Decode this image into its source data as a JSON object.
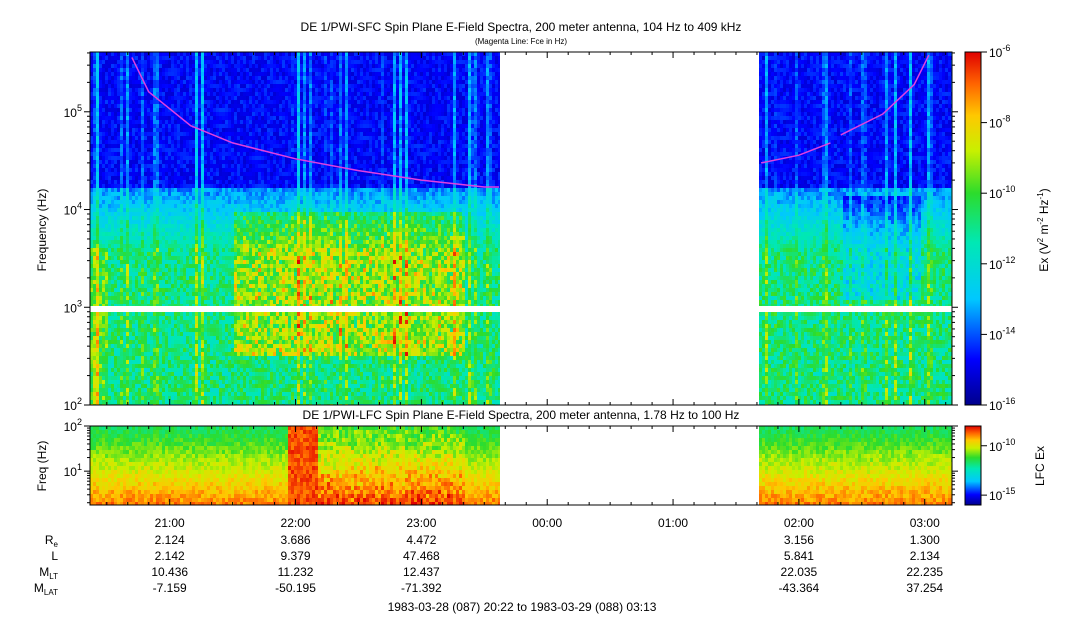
{
  "chart_data": [
    {
      "type": "heatmap",
      "title": "DE 1/PWI-SFC  Spin Plane E-Field Spectra, 200 meter antenna, 104 Hz to 409 kHz",
      "subtitle": "(Magenta Line: Fce in Hz)",
      "ylabel": "Frequency (Hz)",
      "y_scale": "log",
      "ylim": [
        100,
        409000
      ],
      "y_ticks": [
        {
          "value": 100,
          "base": "10",
          "exp": "2"
        },
        {
          "value": 1000,
          "base": "10",
          "exp": "3"
        },
        {
          "value": 10000,
          "base": "10",
          "exp": "4"
        },
        {
          "value": 100000,
          "base": "10",
          "exp": "5"
        }
      ],
      "data_gap": [
        "23:37",
        "01:40"
      ],
      "fce_line": {
        "color": "#e040e0",
        "segments": [
          [
            [
              "20:42",
              360000
            ],
            [
              "20:50",
              160000
            ],
            [
              "21:10",
              72000
            ],
            [
              "21:30",
              48000
            ],
            [
              "22:00",
              33000
            ],
            [
              "22:30",
              25000
            ],
            [
              "23:00",
              20000
            ],
            [
              "23:30",
              17000
            ],
            [
              "23:37",
              17000
            ]
          ],
          [
            [
              "01:42",
              30000
            ],
            [
              "02:00",
              36000
            ],
            [
              "02:15",
              48000
            ]
          ],
          [
            [
              "02:20",
              58000
            ],
            [
              "02:40",
              95000
            ],
            [
              "02:55",
              190000
            ],
            [
              "03:02",
              380000
            ]
          ]
        ]
      },
      "colorbar": {
        "label": "Ex (V",
        "label_sup1": "2",
        "label_mid": " m",
        "label_sup2": "-2",
        "label_mid2": " Hz",
        "label_sup3": "-1",
        "label_end": ")",
        "scale": "log",
        "range": [
          1e-16,
          1e-06
        ],
        "ticks": [
          {
            "value": 1e-06,
            "base": "10",
            "exp": "-6"
          },
          {
            "value": 1e-08,
            "base": "10",
            "exp": "-8"
          },
          {
            "value": 1e-10,
            "base": "10",
            "exp": "-10"
          },
          {
            "value": 1e-12,
            "base": "10",
            "exp": "-12"
          },
          {
            "value": 1e-14,
            "base": "10",
            "exp": "-14"
          },
          {
            "value": 1e-16,
            "base": "10",
            "exp": "-16"
          }
        ]
      }
    },
    {
      "type": "heatmap",
      "title": "DE 1/PWI-LFC  Spin Plane E-Field Spectra, 200 meter antenna, 1.78 Hz to 100 Hz",
      "ylabel": "Freq (Hz)",
      "y_scale": "log",
      "ylim": [
        1.78,
        100
      ],
      "y_ticks": [
        {
          "value": 10,
          "base": "10",
          "exp": "1"
        },
        {
          "value": 100,
          "base": "10",
          "exp": "2"
        }
      ],
      "data_gap": [
        "23:37",
        "01:40"
      ],
      "colorbar": {
        "label": "LFC Ex",
        "scale": "log",
        "range": [
          1e-16,
          1e-08
        ],
        "ticks": [
          {
            "value": 1e-10,
            "base": "10",
            "exp": "-10"
          },
          {
            "value": 1e-15,
            "base": "10",
            "exp": "-15"
          }
        ]
      }
    }
  ],
  "time_axis": {
    "start": "20:22",
    "end": "03:13",
    "ticks": [
      "21:00",
      "22:00",
      "23:00",
      "00:00",
      "01:00",
      "02:00",
      "03:00"
    ]
  },
  "ephemeris": {
    "rows": [
      {
        "label": "R",
        "sub": "e",
        "values": [
          "2.124",
          "3.686",
          "4.472",
          "",
          "",
          "3.156",
          "1.300"
        ]
      },
      {
        "label": "L",
        "sub": "",
        "values": [
          "2.142",
          "9.379",
          "47.468",
          "",
          "",
          "5.841",
          "2.134"
        ]
      },
      {
        "label": "M",
        "sub": "LT",
        "values": [
          "10.436",
          "11.232",
          "12.437",
          "",
          "",
          "22.035",
          "22.235"
        ]
      },
      {
        "label": "M",
        "sub": "LAT",
        "values": [
          "-7.159",
          "-50.195",
          "-71.392",
          "",
          "",
          "-43.364",
          "37.254"
        ]
      }
    ]
  },
  "time_range_label": "1983-03-28 (087) 20:22 to 1983-03-29 (088) 03:13"
}
